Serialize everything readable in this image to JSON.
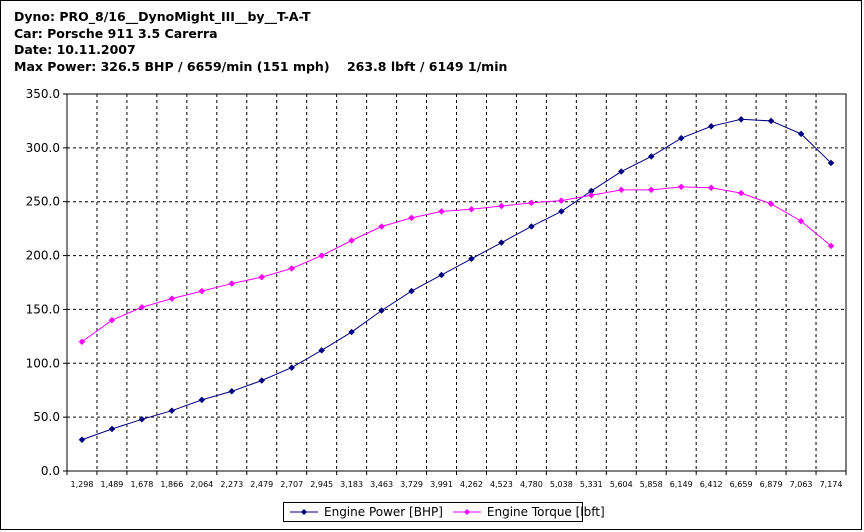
{
  "header": {
    "line1": "Dyno: PRO_8/16__DynoMight_III__by__T-A-T",
    "line2": "Car: Porsche 911 3.5 Carerra",
    "line3": "Date: 10.11.2007",
    "line4": "Max Power: 326.5 BHP / 6659/min (151 mph)    263.8 lbft / 6149 1/min"
  },
  "chart_data": {
    "type": "line",
    "categories": [
      "1,298",
      "1,489",
      "1,678",
      "1,866",
      "2,064",
      "2,273",
      "2,479",
      "2,707",
      "2,945",
      "3,183",
      "3,463",
      "3,729",
      "3,991",
      "4,262",
      "4,523",
      "4,780",
      "5,038",
      "5,331",
      "5,604",
      "5,858",
      "6,149",
      "6,412",
      "6,659",
      "6,879",
      "7,063",
      "7,174"
    ],
    "ylim": [
      0,
      350
    ],
    "yticks": [
      "0.0",
      "50.0",
      "100.0",
      "150.0",
      "200.0",
      "250.0",
      "300.0",
      "350.0"
    ],
    "grid": true,
    "legend_position": "bottom",
    "series": [
      {
        "name": "Engine Power [BHP]",
        "color": "#000080",
        "values": [
          29,
          39,
          48,
          56,
          66,
          74,
          84,
          96,
          112,
          129,
          149,
          167,
          182,
          197,
          212,
          227,
          241,
          260,
          278,
          292,
          309,
          320,
          326.5,
          325,
          313,
          286
        ]
      },
      {
        "name": "Engine Torque [lbft]",
        "color": "#ff00ff",
        "values": [
          120,
          140,
          152,
          160,
          167,
          174,
          180,
          188,
          200,
          214,
          227,
          235,
          241,
          243,
          246,
          249,
          251,
          256,
          261,
          261,
          263.8,
          263,
          258,
          248,
          232,
          209
        ]
      }
    ]
  }
}
